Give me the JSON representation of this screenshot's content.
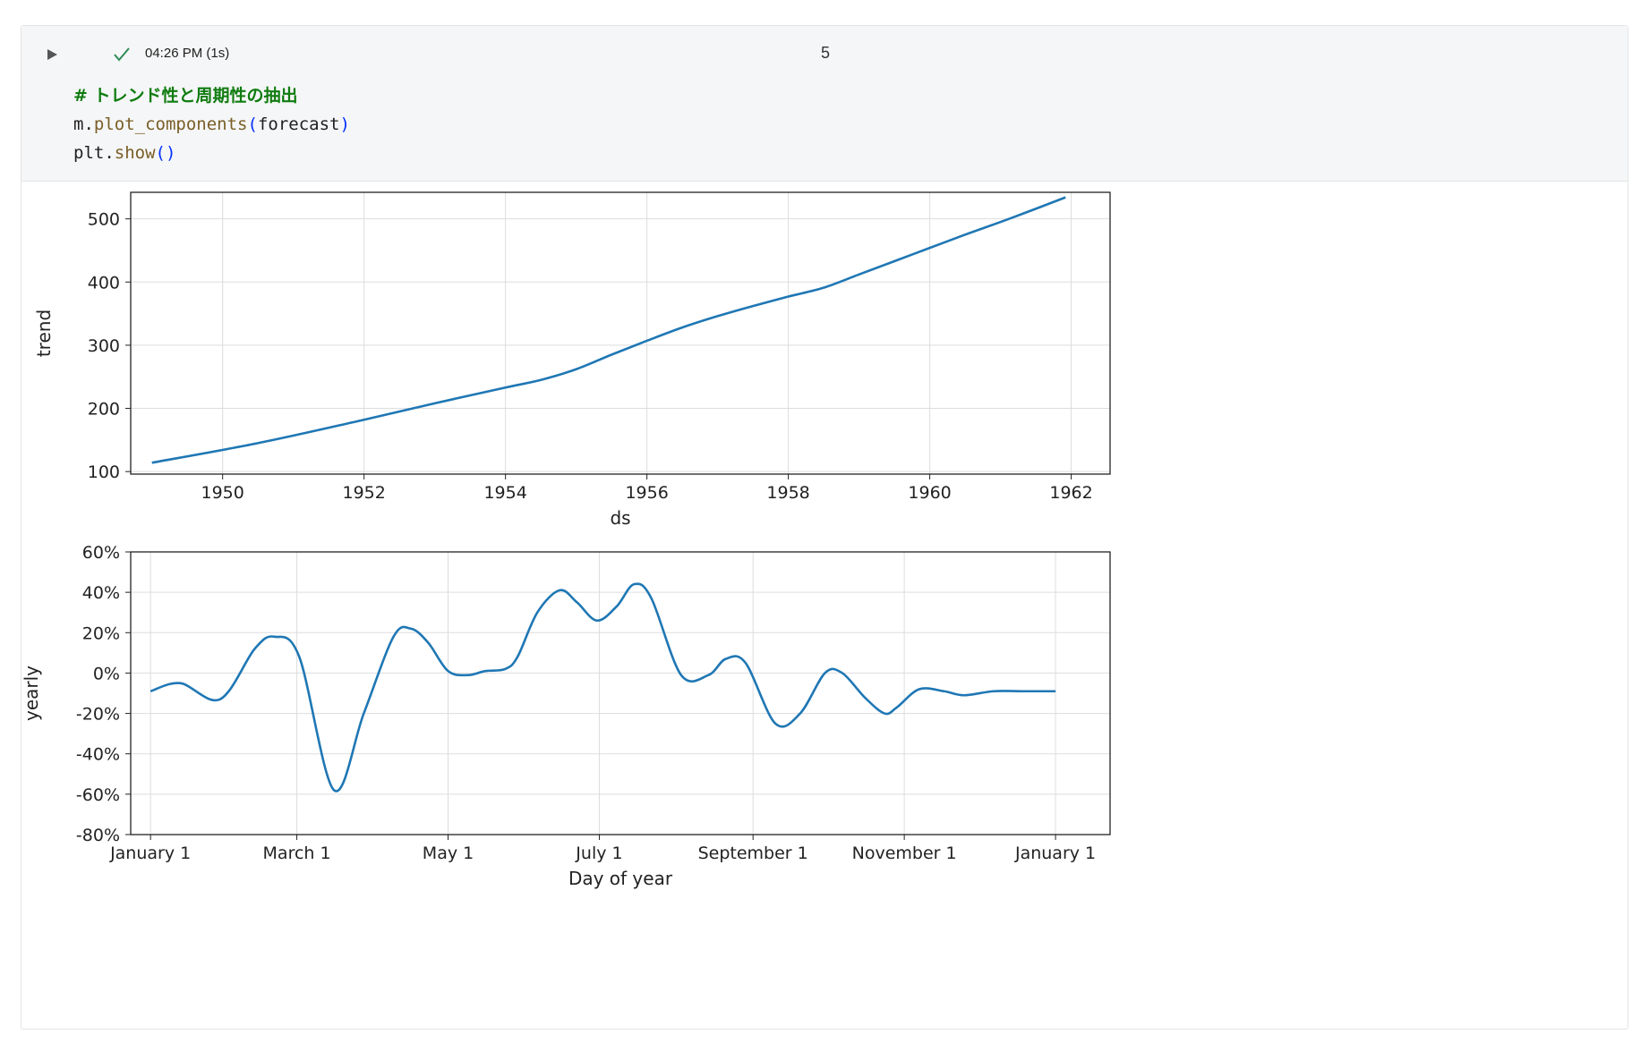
{
  "cell": {
    "status_icon": "check-icon",
    "exec_time": "04:26 PM (1s)",
    "exec_count": "5",
    "code": {
      "line1_comment": "# トレンド性と周期性の抽出",
      "line2_obj": "m.",
      "line2_fn": "plot_components",
      "line2_open": "(",
      "line2_arg": "forecast",
      "line2_close": ")",
      "line3_obj": "plt.",
      "line3_fn": "show",
      "line3_parens": "()"
    }
  },
  "colors": {
    "line": "#1f77b4",
    "grid": "#dddddd",
    "comment": "#107c10"
  },
  "chart_data": [
    {
      "type": "line",
      "title": "",
      "xlabel": "ds",
      "ylabel": "trend",
      "xlim": [
        1948.7,
        1962.55
      ],
      "ylim": [
        96,
        542
      ],
      "xticks": [
        1950,
        1952,
        1954,
        1956,
        1958,
        1960,
        1962
      ],
      "xtick_labels": [
        "1950",
        "1952",
        "1954",
        "1956",
        "1958",
        "1960",
        "1962"
      ],
      "yticks": [
        100,
        200,
        300,
        400,
        500
      ],
      "ytick_labels": [
        "100",
        "200",
        "300",
        "400",
        "500"
      ],
      "grid": true,
      "x": [
        1949.0,
        1950.5,
        1952.0,
        1953.0,
        1954.0,
        1954.5,
        1955.0,
        1955.5,
        1956.0,
        1956.5,
        1957.0,
        1957.5,
        1958.0,
        1958.5,
        1959.0,
        1959.5,
        1960.0,
        1960.5,
        1961.0,
        1961.5,
        1961.92
      ],
      "y": [
        114,
        145,
        182,
        208,
        233,
        245,
        262,
        285,
        307,
        328,
        346,
        362,
        377,
        391,
        412,
        433,
        454,
        475,
        495,
        516,
        534
      ]
    },
    {
      "type": "line",
      "title": "",
      "xlabel": "Day of year",
      "ylabel": "yearly",
      "xlim": [
        -8,
        387
      ],
      "ylim": [
        -80,
        60
      ],
      "xticks": [
        0,
        59,
        120,
        181,
        243,
        304,
        365
      ],
      "xtick_labels": [
        "January 1",
        "March 1",
        "May 1",
        "July 1",
        "September 1",
        "November 1",
        "January 1"
      ],
      "yticks": [
        60,
        40,
        20,
        0,
        -20,
        -40,
        -60,
        -80
      ],
      "ytick_labels": [
        "60%",
        "40%",
        "20%",
        "0%",
        "-20%",
        "-40%",
        "-60%",
        "-80%"
      ],
      "grid": true,
      "x": [
        0,
        12,
        28,
        42,
        50,
        60,
        74,
        86,
        98,
        105,
        112,
        120,
        128,
        135,
        143,
        148,
        156,
        165,
        172,
        180,
        188,
        195,
        202,
        214,
        225,
        232,
        240,
        252,
        262,
        272,
        279,
        288,
        296,
        301,
        310,
        320,
        328,
        340,
        352,
        365
      ],
      "y": [
        -9,
        -5,
        -13,
        12,
        18,
        8,
        -58,
        -20,
        18,
        22,
        15,
        1,
        -1,
        1,
        2,
        8,
        30,
        41,
        35,
        26,
        33,
        44,
        37,
        -1,
        -1,
        7,
        5,
        -25,
        -20,
        0,
        0,
        -12,
        -20,
        -17,
        -8,
        -9,
        -11,
        -9,
        -9,
        -9
      ]
    }
  ]
}
